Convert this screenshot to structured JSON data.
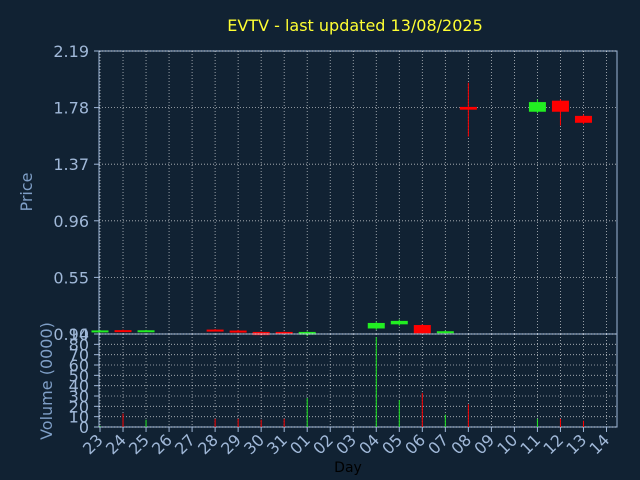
{
  "chart_data": [
    {
      "type": "candlestick",
      "title": "EVTV - last updated 13/08/2025",
      "ylabel": "Price",
      "ylim": [
        0.14,
        2.19
      ],
      "yticks": [
        "2.19",
        "1.78",
        "1.37",
        "0.96",
        "0.55",
        "0.14"
      ],
      "grid": true,
      "colors": {
        "up": "#22ee22",
        "down": "#ff0000",
        "background": "#112233",
        "axes": "#a0b8d8",
        "title": "#ffff33"
      },
      "x": [
        "23",
        "24",
        "25",
        "26",
        "27",
        "28",
        "29",
        "30",
        "31",
        "01",
        "02",
        "03",
        "04",
        "05",
        "06",
        "07",
        "08",
        "09",
        "10",
        "11",
        "12",
        "13",
        "14"
      ],
      "candles": [
        {
          "day": "23",
          "open": 0.165,
          "high": 0.168,
          "low": 0.162,
          "close": 0.166
        },
        {
          "day": "24",
          "open": 0.168,
          "high": 0.172,
          "low": 0.164,
          "close": 0.163
        },
        {
          "day": "25",
          "open": 0.163,
          "high": 0.17,
          "low": 0.16,
          "close": 0.167
        },
        {
          "day": "28",
          "open": 0.172,
          "high": 0.176,
          "low": 0.161,
          "close": 0.16
        },
        {
          "day": "29",
          "open": 0.165,
          "high": 0.17,
          "low": 0.15,
          "close": 0.15
        },
        {
          "day": "30",
          "open": 0.155,
          "high": 0.158,
          "low": 0.13,
          "close": 0.132
        },
        {
          "day": "31",
          "open": 0.155,
          "high": 0.158,
          "low": 0.135,
          "close": 0.137
        },
        {
          "day": "01",
          "open": 0.135,
          "high": 0.16,
          "low": 0.125,
          "close": 0.155
        },
        {
          "day": "04",
          "open": 0.18,
          "high": 0.23,
          "low": 0.17,
          "close": 0.22
        },
        {
          "day": "05",
          "open": 0.21,
          "high": 0.245,
          "low": 0.2,
          "close": 0.235
        },
        {
          "day": "06",
          "open": 0.205,
          "high": 0.21,
          "low": 0.14,
          "close": 0.145
        },
        {
          "day": "07",
          "open": 0.15,
          "high": 0.165,
          "low": 0.14,
          "close": 0.16
        },
        {
          "day": "08",
          "open": 1.785,
          "high": 1.96,
          "low": 1.57,
          "close": 1.765
        },
        {
          "day": "11",
          "open": 1.75,
          "high": 1.84,
          "low": 1.74,
          "close": 1.82
        },
        {
          "day": "12",
          "open": 1.83,
          "high": 1.84,
          "low": 1.65,
          "close": 1.75
        },
        {
          "day": "13",
          "open": 1.72,
          "high": 1.73,
          "low": 1.66,
          "close": 1.67
        }
      ]
    },
    {
      "type": "bar",
      "ylabel": "Volume (0000)",
      "xlabel": "Day",
      "ylim": [
        0,
        90
      ],
      "yticks": [
        "0",
        "10",
        "20",
        "30",
        "40",
        "50",
        "60",
        "70",
        "80",
        "90"
      ],
      "grid": true,
      "categories": [
        "23",
        "24",
        "25",
        "26",
        "27",
        "28",
        "29",
        "30",
        "31",
        "01",
        "02",
        "03",
        "04",
        "05",
        "06",
        "07",
        "08",
        "09",
        "10",
        "11",
        "12",
        "13",
        "14"
      ],
      "values": [
        1,
        13,
        7,
        0,
        0,
        8,
        8,
        7,
        8,
        28,
        0,
        0,
        87,
        26,
        33,
        12,
        22,
        0,
        0,
        8,
        8,
        6,
        0
      ],
      "bar_colors": [
        "#22ee22",
        "#ff0000",
        "#22ee22",
        "",
        "",
        "#ff0000",
        "#ff0000",
        "#ff0000",
        "#ff0000",
        "#22ee22",
        "",
        "",
        "#22ee22",
        "#22ee22",
        "#ff0000",
        "#22ee22",
        "#ff0000",
        "",
        "",
        "#22ee22",
        "#ff0000",
        "#ff0000",
        ""
      ]
    }
  ]
}
